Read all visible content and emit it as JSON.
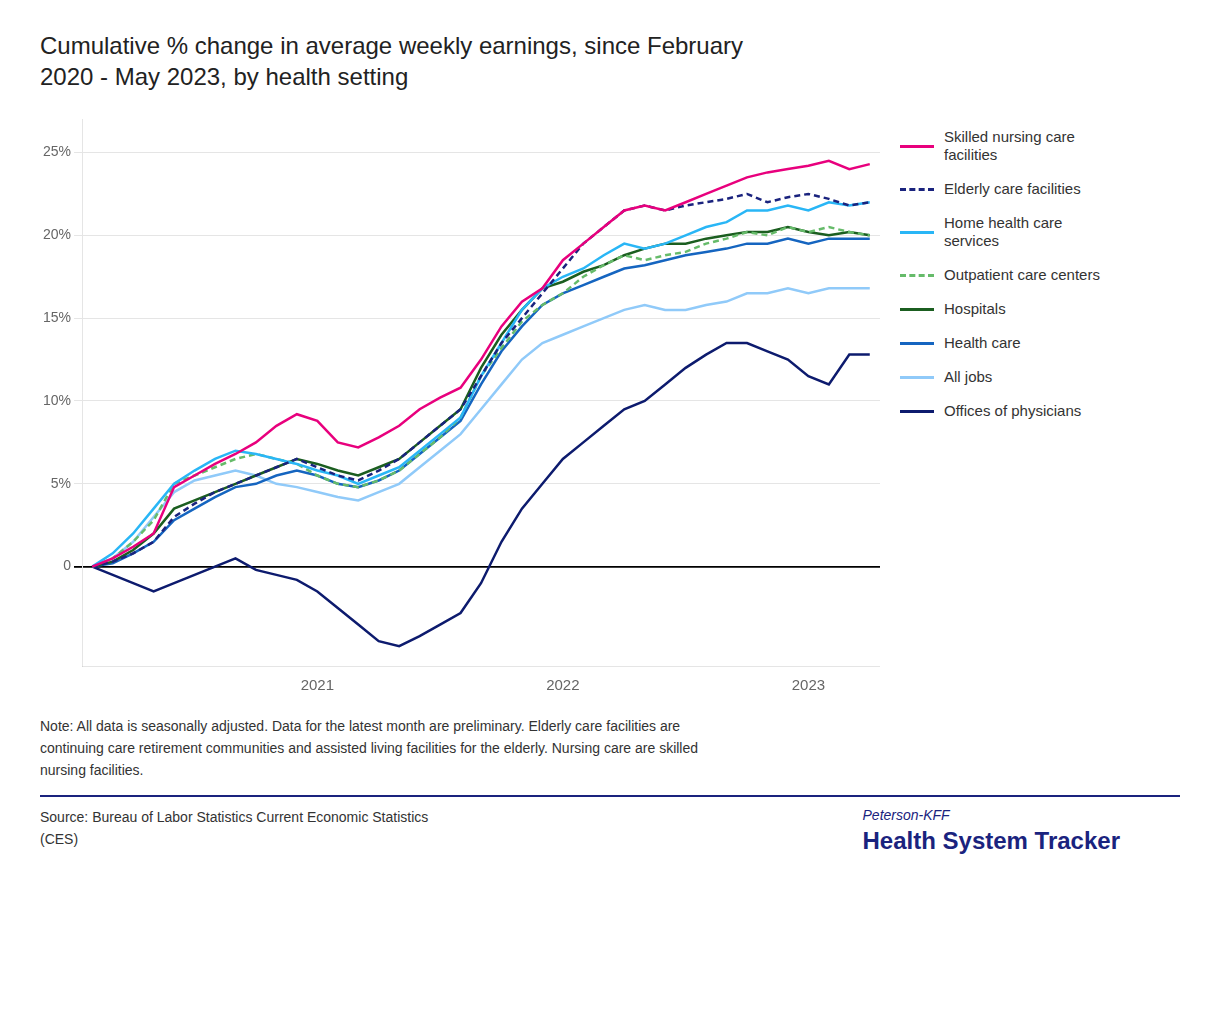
{
  "chart_data": {
    "type": "line",
    "title": "Cumulative % change in average weekly earnings, since February\n2020 - May 2023, by health setting",
    "note": "Note: All data is seasonally adjusted. Data for the latest month are preliminary. Elderly care facilities are\ncontinuing care retirement communities and assisted living facilities for the elderly. Nursing care are skilled\nnursing facilities.",
    "source": "Source: Bureau of Labor Statistics Current Economic Statistics\n(CES)",
    "annotations": [
      "Peterson-KFF",
      "Health System Tracker"
    ],
    "categories": [
      null,
      null,
      null,
      null,
      null,
      null,
      null,
      null,
      null,
      null,
      null,
      "2021",
      null,
      null,
      null,
      null,
      null,
      null,
      null,
      null,
      null,
      null,
      null,
      "2022",
      null,
      null,
      null,
      null,
      null,
      null,
      null,
      null,
      null,
      null,
      null,
      "2023",
      null,
      null,
      null
    ],
    "series": [
      {
        "name": "Skilled nursing care\nfacilities",
        "color": "#E8007D",
        "line_style": "solid",
        "values": [
          0,
          0.5,
          1.2,
          2.0,
          4.8,
          5.5,
          6.2,
          6.8,
          7.5,
          8.5,
          9.2,
          8.8,
          7.5,
          7.2,
          7.8,
          8.5,
          9.5,
          10.2,
          10.8,
          12.5,
          14.5,
          16.0,
          16.8,
          18.5,
          19.5,
          20.5,
          21.5,
          21.8,
          21.5,
          22.0,
          22.5,
          23.0,
          23.5,
          23.8,
          24.0,
          24.2,
          24.5,
          24.0,
          24.3
        ]
      },
      {
        "name": "Elderly care facilities",
        "color": "#1a237e",
        "line_style": "dashed",
        "values": [
          0,
          0.3,
          0.8,
          1.5,
          3.0,
          3.8,
          4.5,
          5.0,
          5.5,
          6.0,
          6.5,
          6.0,
          5.5,
          5.2,
          5.8,
          6.5,
          7.5,
          8.5,
          9.5,
          11.5,
          13.5,
          15.0,
          16.5,
          18.0,
          19.5,
          20.5,
          21.5,
          21.8,
          21.5,
          21.8,
          22.0,
          22.2,
          22.5,
          22.0,
          22.3,
          22.5,
          22.2,
          21.8,
          22.0
        ]
      },
      {
        "name": "Home health care\nservices",
        "color": "#29B6F6",
        "line_style": "solid",
        "values": [
          0,
          0.8,
          2.0,
          3.5,
          5.0,
          5.8,
          6.5,
          7.0,
          6.8,
          6.5,
          6.2,
          5.8,
          5.5,
          5.0,
          5.5,
          6.0,
          7.0,
          8.0,
          9.0,
          11.5,
          13.5,
          15.5,
          16.8,
          17.5,
          18.0,
          18.8,
          19.5,
          19.2,
          19.5,
          20.0,
          20.5,
          20.8,
          21.5,
          21.5,
          21.8,
          21.5,
          22.0,
          21.8,
          22.0
        ]
      },
      {
        "name": "Outpatient care centers",
        "color": "#66BB6A",
        "line_style": "dashed",
        "values": [
          0,
          0.5,
          1.5,
          2.8,
          5.0,
          5.5,
          6.0,
          6.5,
          6.8,
          6.5,
          6.2,
          5.5,
          5.0,
          4.8,
          5.2,
          5.8,
          6.8,
          7.8,
          9.0,
          11.5,
          13.2,
          14.8,
          15.8,
          16.5,
          17.5,
          18.2,
          18.8,
          18.5,
          18.8,
          19.0,
          19.5,
          19.8,
          20.2,
          20.0,
          20.5,
          20.2,
          20.5,
          20.2,
          20.0
        ]
      },
      {
        "name": "Hospitals",
        "color": "#1B5E20",
        "line_style": "solid",
        "values": [
          0,
          0.3,
          1.0,
          2.0,
          3.5,
          4.0,
          4.5,
          5.0,
          5.5,
          6.0,
          6.5,
          6.2,
          5.8,
          5.5,
          6.0,
          6.5,
          7.5,
          8.5,
          9.5,
          12.0,
          14.0,
          15.5,
          16.8,
          17.2,
          17.8,
          18.2,
          18.8,
          19.2,
          19.5,
          19.5,
          19.8,
          20.0,
          20.2,
          20.2,
          20.5,
          20.2,
          20.0,
          20.2,
          20.0
        ]
      },
      {
        "name": "Health care",
        "color": "#1565C0",
        "line_style": "solid",
        "values": [
          0,
          0.2,
          0.8,
          1.5,
          2.8,
          3.5,
          4.2,
          4.8,
          5.0,
          5.5,
          5.8,
          5.5,
          5.0,
          4.8,
          5.2,
          5.8,
          6.8,
          7.8,
          8.8,
          11.0,
          13.0,
          14.5,
          15.8,
          16.5,
          17.0,
          17.5,
          18.0,
          18.2,
          18.5,
          18.8,
          19.0,
          19.2,
          19.5,
          19.5,
          19.8,
          19.5,
          19.8,
          19.8,
          19.8
        ]
      },
      {
        "name": "All jobs",
        "color": "#90CAF9",
        "line_style": "solid",
        "values": [
          0,
          0.5,
          1.5,
          3.0,
          4.5,
          5.2,
          5.5,
          5.8,
          5.5,
          5.0,
          4.8,
          4.5,
          4.2,
          4.0,
          4.5,
          5.0,
          6.0,
          7.0,
          8.0,
          9.5,
          11.0,
          12.5,
          13.5,
          14.0,
          14.5,
          15.0,
          15.5,
          15.8,
          15.5,
          15.5,
          15.8,
          16.0,
          16.5,
          16.5,
          16.8,
          16.5,
          16.8,
          16.8,
          16.8
        ]
      },
      {
        "name": "Offices of physicians",
        "color": "#0D1B6E",
        "line_style": "solid",
        "values": [
          0,
          -0.5,
          -1.0,
          -1.5,
          -1.0,
          -0.5,
          0.0,
          0.5,
          -0.2,
          -0.5,
          -0.8,
          -1.5,
          -2.5,
          -3.5,
          -4.5,
          -4.8,
          -4.2,
          -3.5,
          -2.8,
          -1.0,
          1.5,
          3.5,
          5.0,
          6.5,
          7.5,
          8.5,
          9.5,
          10.0,
          11.0,
          12.0,
          12.8,
          13.5,
          13.5,
          13.0,
          12.5,
          11.5,
          11.0,
          12.8,
          12.8
        ]
      }
    ],
    "ylim": [
      -6,
      27
    ],
    "yticks": [
      0,
      {
        "value": 5,
        "label": "5%"
      },
      {
        "value": 10,
        "label": "10%"
      },
      {
        "value": 15,
        "label": "15%"
      },
      {
        "value": 20,
        "label": "20%"
      },
      {
        "value": 25,
        "label": "25%"
      }
    ],
    "grid": true,
    "legend": "right"
  }
}
